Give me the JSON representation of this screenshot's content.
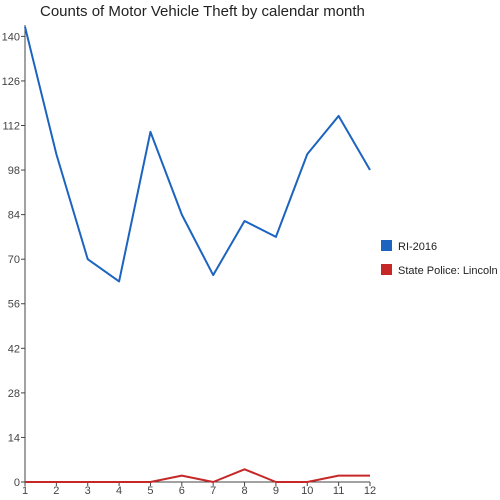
{
  "chart_data": {
    "type": "line",
    "title": "Counts of Motor Vehicle Theft by calendar month",
    "xlabel": "",
    "ylabel": "",
    "x": [
      1,
      2,
      3,
      4,
      5,
      6,
      7,
      8,
      9,
      10,
      11,
      12
    ],
    "ylim": [
      0,
      142
    ],
    "yticks": [
      0,
      14,
      28,
      42,
      56,
      70,
      84,
      98,
      112,
      126,
      140
    ],
    "grid": false,
    "legend_position": "right",
    "series": [
      {
        "name": "RI-2016",
        "color": "#1c64c0",
        "values": [
          143,
          103,
          70,
          63,
          110,
          84,
          65,
          82,
          77,
          103,
          115,
          98
        ]
      },
      {
        "name": "State Police: Lincoln",
        "color": "#c62828",
        "values": [
          0,
          0,
          0,
          0,
          0,
          2,
          0,
          4,
          0,
          0,
          2,
          2
        ]
      }
    ]
  }
}
